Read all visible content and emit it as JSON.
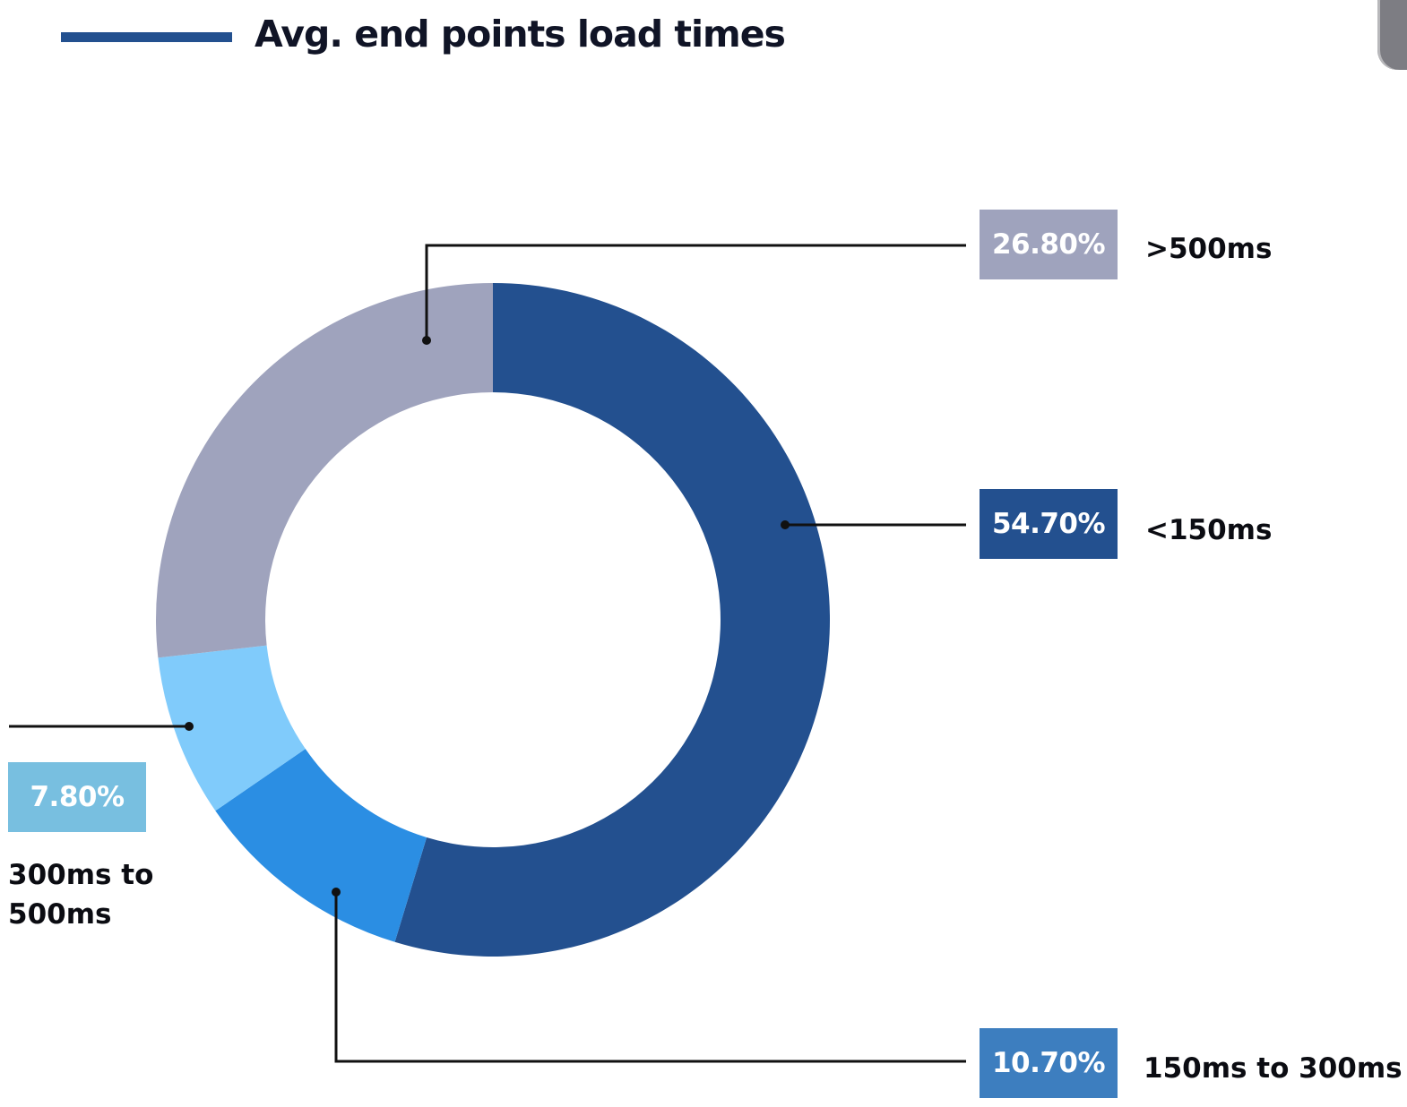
{
  "title": "Avg. end points load times",
  "colors": {
    "title_bar": "#23508f",
    "leader_line": "#111111"
  },
  "chart_data": {
    "type": "pie",
    "variant": "donut",
    "title": "Avg. end points load times",
    "slices": [
      {
        "label": "<150ms",
        "value": 54.7,
        "display": "54.70%",
        "color": "#23508f",
        "box_color": "#23508f"
      },
      {
        "label": "150ms to 300ms",
        "value": 10.7,
        "display": "10.70%",
        "color": "#2b8ee3",
        "box_color": "#3d7ebf"
      },
      {
        "label": "300ms to 500ms",
        "value": 7.8,
        "display": "7.80%",
        "color": "#80cbfb",
        "box_color": "#78bfe0"
      },
      {
        "label": ">500ms",
        "value": 26.8,
        "display": "26.80%",
        "color": "#9fa3bd",
        "box_color": "#9fa3bd"
      }
    ],
    "start_angle": "12 o'clock",
    "direction": "clockwise"
  }
}
